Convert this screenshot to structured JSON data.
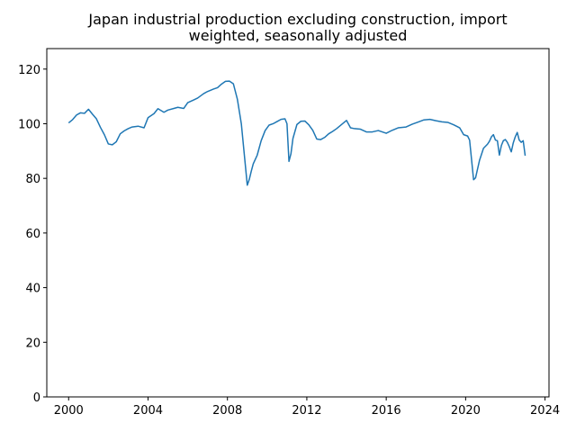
{
  "chart_data": {
    "type": "line",
    "title_lines": [
      "Japan industrial production excluding construction, import",
      "weighted, seasonally adjusted"
    ],
    "xlabel": "",
    "ylabel": "",
    "xlim": [
      1998.9,
      2024.2
    ],
    "ylim": [
      0,
      127.5
    ],
    "x_ticks": [
      2000,
      2004,
      2008,
      2012,
      2016,
      2020,
      2024
    ],
    "y_ticks": [
      0,
      20,
      40,
      60,
      80,
      100,
      120
    ],
    "grid": false,
    "line_color": "#1f77b4",
    "series": [
      {
        "x": [
          2000.0,
          2000.2,
          2000.4,
          2000.6,
          2000.8,
          2001.0,
          2001.2,
          2001.4,
          2001.6,
          2001.8,
          2002.0,
          2002.2,
          2002.4,
          2002.6,
          2002.8,
          2003.0,
          2003.2,
          2003.5,
          2003.8,
          2004.0,
          2004.3,
          2004.5,
          2004.8,
          2005.0,
          2005.3,
          2005.5,
          2005.8,
          2006.0,
          2006.3,
          2006.5,
          2006.8,
          2007.0,
          2007.3,
          2007.5,
          2007.7,
          2007.9,
          2008.1,
          2008.3,
          2008.5,
          2008.7,
          2008.9,
          2009.0,
          2009.1,
          2009.2,
          2009.3,
          2009.5,
          2009.7,
          2009.9,
          2010.1,
          2010.3,
          2010.5,
          2010.7,
          2010.9,
          2011.0,
          2011.1,
          2011.2,
          2011.3,
          2011.5,
          2011.7,
          2011.9,
          2012.1,
          2012.3,
          2012.5,
          2012.7,
          2012.9,
          2013.1,
          2013.3,
          2013.5,
          2013.8,
          2014.0,
          2014.2,
          2014.4,
          2014.7,
          2015.0,
          2015.3,
          2015.6,
          2016.0,
          2016.3,
          2016.6,
          2017.0,
          2017.3,
          2017.6,
          2017.9,
          2018.2,
          2018.5,
          2018.8,
          2019.1,
          2019.4,
          2019.7,
          2019.9,
          2020.1,
          2020.2,
          2020.3,
          2020.4,
          2020.5,
          2020.7,
          2020.9,
          2021.1,
          2021.2,
          2021.3,
          2021.4,
          2021.5,
          2021.6,
          2021.7,
          2021.8,
          2021.9,
          2022.0,
          2022.1,
          2022.2,
          2022.3,
          2022.4,
          2022.5,
          2022.6,
          2022.7,
          2022.8,
          2022.9,
          2023.0
        ],
        "values": [
          100.3,
          101.5,
          103.2,
          104.0,
          103.8,
          105.3,
          103.5,
          101.8,
          98.7,
          96.0,
          92.6,
          92.3,
          93.4,
          96.3,
          97.4,
          98.2,
          98.8,
          99.1,
          98.5,
          102.2,
          103.7,
          105.5,
          104.2,
          105.0,
          105.6,
          106.0,
          105.6,
          107.7,
          108.7,
          109.4,
          111.0,
          111.8,
          112.7,
          113.2,
          114.5,
          115.5,
          115.6,
          114.6,
          109.0,
          100.0,
          85.0,
          77.5,
          79.6,
          82.6,
          85.3,
          88.5,
          93.8,
          97.5,
          99.5,
          100.0,
          100.8,
          101.6,
          101.8,
          100.0,
          86.2,
          89.0,
          94.6,
          99.7,
          100.9,
          101.0,
          99.6,
          97.6,
          94.4,
          94.2,
          95.0,
          96.3,
          97.2,
          98.2,
          100.0,
          101.2,
          98.5,
          98.2,
          98.0,
          97.0,
          97.0,
          97.5,
          96.5,
          97.6,
          98.5,
          98.8,
          99.8,
          100.6,
          101.4,
          101.6,
          101.1,
          100.7,
          100.5,
          99.6,
          98.5,
          96.0,
          95.5,
          94.0,
          86.8,
          79.5,
          80.2,
          86.6,
          91.0,
          92.5,
          93.6,
          95.2,
          96.0,
          94.0,
          93.8,
          88.5,
          92.0,
          93.8,
          94.2,
          93.2,
          91.6,
          89.7,
          93.0,
          95.2,
          96.8,
          94.0,
          93.2,
          93.8,
          88.3
        ]
      }
    ]
  }
}
